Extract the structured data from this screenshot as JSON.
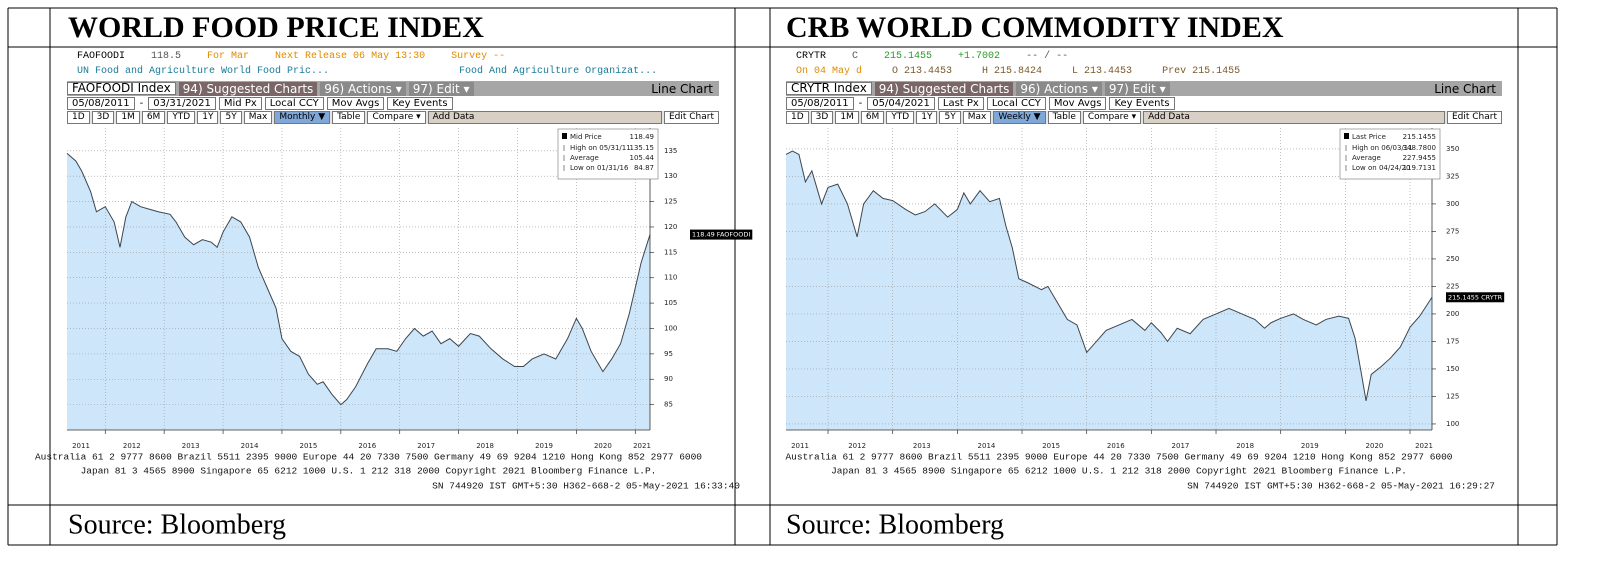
{
  "table": {
    "headers": [
      "WORLD FOOD PRICE INDEX",
      "CRB WORLD COMMODITY INDEX"
    ],
    "sources": [
      "Source: Bloomberg",
      "Source: Bloomberg"
    ]
  },
  "chart_data": [
    {
      "type": "line",
      "quote": [
        {
          "text": "FAOFOODI",
          "color": "#000000"
        },
        {
          "text": "118.5",
          "color": "#555555"
        },
        {
          "text": "For Mar",
          "color": "#e08a00"
        },
        {
          "text": "Next Release 06 May 13:30",
          "color": "#e08a00"
        },
        {
          "text": "Survey --",
          "color": "#e08a00"
        }
      ],
      "description": [
        {
          "text": "UN Food and Agriculture World Food Pric...",
          "color": "#1a7a9a"
        },
        {
          "text": "Food And Agriculture Organizat...",
          "color": "#1a7a9a"
        }
      ],
      "toolbar": [
        "FAOFOODI Index",
        "94) Suggested Charts",
        "96) Actions ▾",
        "97) Edit ▾",
        "Line Chart"
      ],
      "range_bar": [
        "05/08/2011",
        "-",
        "03/31/2021",
        "Mid Px",
        "Local CCY",
        "Mov Avgs",
        "Key Events"
      ],
      "period_bar": [
        "1D",
        "3D",
        "1M",
        "6M",
        "YTD",
        "1Y",
        "5Y",
        "Max",
        "Monthly ▼",
        "Table",
        "Compare ▾",
        "Add Data",
        "Edit Chart"
      ],
      "x": [
        2011.35,
        2011.5,
        2011.6,
        2011.75,
        2011.85,
        2012.0,
        2012.15,
        2012.25,
        2012.35,
        2012.45,
        2012.6,
        2012.75,
        2012.9,
        2013.1,
        2013.2,
        2013.35,
        2013.5,
        2013.65,
        2013.8,
        2013.9,
        2014.0,
        2014.15,
        2014.3,
        2014.45,
        2014.6,
        2014.75,
        2014.9,
        2015.0,
        2015.15,
        2015.3,
        2015.45,
        2015.6,
        2015.7,
        2015.85,
        2016.0,
        2016.1,
        2016.25,
        2016.45,
        2016.6,
        2016.8,
        2016.95,
        2017.1,
        2017.25,
        2017.4,
        2017.55,
        2017.7,
        2017.85,
        2018.0,
        2018.2,
        2018.35,
        2018.55,
        2018.75,
        2018.95,
        2019.1,
        2019.25,
        2019.45,
        2019.65,
        2019.85,
        2020.0,
        2020.1,
        2020.25,
        2020.45,
        2020.6,
        2020.75,
        2020.9,
        2021.0,
        2021.1,
        2021.25
      ],
      "series": [
        {
          "name": "Mid Price",
          "legend_value": "118.49",
          "color": "#3c4650",
          "fill_color": "#cde6f9",
          "values": [
            134.5,
            133,
            131,
            127,
            123,
            124,
            121,
            116,
            122,
            125,
            124,
            123.5,
            123,
            122.5,
            121,
            118,
            116.5,
            117.5,
            117,
            116,
            119,
            122,
            121,
            118,
            112,
            108,
            104,
            98,
            95.5,
            94.5,
            91,
            89,
            89.5,
            87,
            85,
            86,
            88.5,
            93,
            96,
            96,
            95.5,
            98,
            100,
            98.5,
            99.5,
            97,
            98,
            96.5,
            99,
            98.5,
            96,
            94,
            92.5,
            92.5,
            94,
            95,
            94,
            98,
            102,
            100,
            95.5,
            91.5,
            94,
            97,
            103,
            108,
            113,
            118.5
          ]
        }
      ],
      "legend_box": [
        {
          "label": "High on 05/31/11",
          "value": "135.15"
        },
        {
          "label": "Average",
          "value": "105.44"
        },
        {
          "label": "Low on 01/31/16",
          "value": "84.87"
        }
      ],
      "last_label": "118.49 FAOFOODI",
      "xlim": [
        2011.35,
        2021.25
      ],
      "xticks": [
        2011,
        2012,
        2013,
        2014,
        2015,
        2016,
        2017,
        2018,
        2019,
        2020,
        2021
      ],
      "ylim": [
        80,
        139.5
      ],
      "yticks": [
        85,
        90,
        95,
        100,
        105,
        110,
        115,
        120,
        125,
        130,
        135
      ],
      "grid": true,
      "footer": [
        "Australia 61 2 9777 8600 Brazil 5511 2395 9000 Europe 44 20 7330 7500 Germany 49 69 9204 1210 Hong Kong 852 2977 6000",
        "Japan 81 3 4565 8900 Singapore 65 6212 1000 U.S. 1 212 318 2000 Copyright 2021 Bloomberg Finance L.P.",
        "SN 744920 IST GMT+5:30 H362-668-2 05-May-2021 16:33:40"
      ]
    },
    {
      "type": "line",
      "quote": [
        {
          "text": "CRYTR",
          "color": "#000000"
        },
        {
          "text": "C",
          "color": "#555555"
        },
        {
          "text": "215.1455",
          "color": "#2a9a2a"
        },
        {
          "text": "+1.7002",
          "color": "#2a9a2a"
        },
        {
          "text": "-- / --",
          "color": "#555555"
        }
      ],
      "description": [
        {
          "text": "On 04 May d",
          "color": "#e08a00"
        },
        {
          "text": "O 213.4453",
          "color": "#7a5a2a"
        },
        {
          "text": "H 215.8424",
          "color": "#7a5a2a"
        },
        {
          "text": "L 213.4453",
          "color": "#7a5a2a"
        },
        {
          "text": "Prev 215.1455",
          "color": "#7a5a2a"
        }
      ],
      "toolbar": [
        "CRYTR Index",
        "94) Suggested Charts",
        "96) Actions ▾",
        "97) Edit ▾",
        "Line Chart"
      ],
      "range_bar": [
        "05/08/2011",
        "-",
        "05/04/2021",
        "Last Px",
        "Local CCY",
        "Mov Avgs",
        "Key Events"
      ],
      "period_bar": [
        "1D",
        "3D",
        "1M",
        "6M",
        "YTD",
        "1Y",
        "5Y",
        "Max",
        "Weekly ▼",
        "Table",
        "Compare ▾",
        "Add Data",
        "Edit Chart"
      ],
      "x": [
        2011.35,
        2011.45,
        2011.55,
        2011.65,
        2011.75,
        2011.9,
        2012.0,
        2012.15,
        2012.3,
        2012.45,
        2012.55,
        2012.7,
        2012.85,
        2013.0,
        2013.2,
        2013.35,
        2013.5,
        2013.65,
        2013.85,
        2014.0,
        2014.1,
        2014.2,
        2014.35,
        2014.5,
        2014.65,
        2014.75,
        2014.85,
        2014.95,
        2015.1,
        2015.3,
        2015.4,
        2015.55,
        2015.7,
        2015.85,
        2016.0,
        2016.15,
        2016.3,
        2016.5,
        2016.7,
        2016.9,
        2017.0,
        2017.15,
        2017.25,
        2017.4,
        2017.6,
        2017.8,
        2018.0,
        2018.2,
        2018.4,
        2018.6,
        2018.75,
        2018.85,
        2019.0,
        2019.2,
        2019.35,
        2019.55,
        2019.7,
        2019.9,
        2020.05,
        2020.15,
        2020.25,
        2020.32,
        2020.4,
        2020.55,
        2020.7,
        2020.85,
        2021.0,
        2021.15,
        2021.34
      ],
      "series": [
        {
          "name": "Last Price",
          "legend_value": "215.1455",
          "color": "#3c4650",
          "fill_color": "#cde6f9",
          "values": [
            345,
            348,
            345,
            320,
            330,
            300,
            315,
            318,
            300,
            270,
            300,
            312,
            305,
            303,
            295,
            290,
            293,
            300,
            288,
            295,
            310,
            300,
            312,
            302,
            305,
            280,
            260,
            232,
            228,
            222,
            225,
            210,
            195,
            190,
            165,
            175,
            185,
            190,
            195,
            185,
            192,
            183,
            175,
            187,
            182,
            195,
            200,
            205,
            200,
            195,
            187,
            192,
            196,
            200,
            195,
            190,
            195,
            198,
            196,
            178,
            145,
            121,
            145,
            152,
            160,
            170,
            188,
            198,
            215.1455
          ]
        }
      ],
      "legend_box": [
        {
          "label": "High on 06/03/11",
          "value": "348.7800"
        },
        {
          "label": "Average",
          "value": "227.9455"
        },
        {
          "label": "Low on 04/24/20",
          "value": "119.7131"
        }
      ],
      "last_label": "215.1455 CRYTR",
      "xlim": [
        2011.35,
        2021.34
      ],
      "xticks": [
        2011,
        2012,
        2013,
        2014,
        2015,
        2016,
        2017,
        2018,
        2019,
        2020,
        2021
      ],
      "ylim": [
        94.5,
        369
      ],
      "yticks": [
        100,
        125,
        150,
        175,
        200,
        225,
        250,
        275,
        300,
        325,
        350
      ],
      "grid": true,
      "footer": [
        "Australia 61 2 9777 8600 Brazil 5511 2395 9000 Europe 44 20 7330 7500 Germany 49 69 9204 1210 Hong Kong 852 2977 6000",
        "Japan 81 3 4565 8900 Singapore 65 6212 1000 U.S. 1 212 318 2000 Copyright 2021 Bloomberg Finance L.P.",
        "SN 744920 IST GMT+5:30 H362-668-2 05-May-2021 16:29:27"
      ]
    }
  ]
}
